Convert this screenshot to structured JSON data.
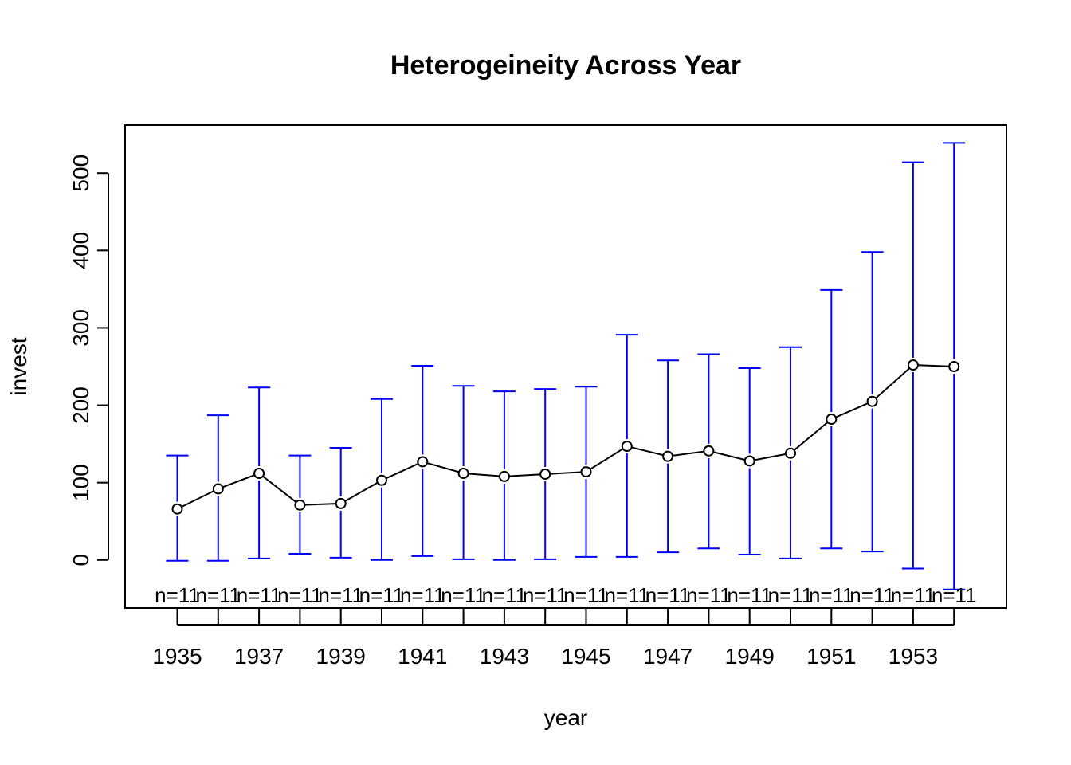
{
  "chart_data": {
    "type": "line",
    "title": "Heterogeineity Across Year",
    "xlabel": "year",
    "ylabel": "invest",
    "x": [
      1935,
      1936,
      1937,
      1938,
      1939,
      1940,
      1941,
      1942,
      1943,
      1944,
      1945,
      1946,
      1947,
      1948,
      1949,
      1950,
      1951,
      1952,
      1953,
      1954
    ],
    "x_tick_labels": [
      "1935",
      "1937",
      "1939",
      "1941",
      "1943",
      "1945",
      "1947",
      "1949",
      "1951",
      "1953"
    ],
    "y_ticks": [
      0,
      100,
      200,
      300,
      400,
      500
    ],
    "ylim": [
      -62,
      562
    ],
    "grid": false,
    "legend": "none",
    "series": [
      {
        "values": [
          66,
          92,
          112,
          71,
          73,
          103,
          127,
          112,
          108,
          111,
          114,
          147,
          134,
          141,
          128,
          138,
          182,
          205,
          252,
          250
        ],
        "lower": [
          -1,
          -1,
          2,
          8,
          3,
          0,
          5,
          1,
          0,
          1,
          4,
          4,
          10,
          15,
          7,
          2,
          15,
          11,
          -11,
          -38
        ],
        "upper": [
          135,
          187,
          223,
          135,
          145,
          208,
          251,
          225,
          218,
          221,
          224,
          291,
          258,
          266,
          248,
          275,
          349,
          398,
          514,
          539
        ]
      }
    ],
    "n_labels": [
      "n=11",
      "n=11",
      "n=11",
      "n=11",
      "n=11",
      "n=11",
      "n=11",
      "n=11",
      "n=11",
      "n=11",
      "n=11",
      "n=11",
      "n=11",
      "n=11",
      "n=11",
      "n=11",
      "n=11",
      "n=11",
      "n=11",
      "n=11"
    ],
    "colors": {
      "errorbar": "#0000ff",
      "line": "#000000",
      "point": "#000000"
    }
  }
}
